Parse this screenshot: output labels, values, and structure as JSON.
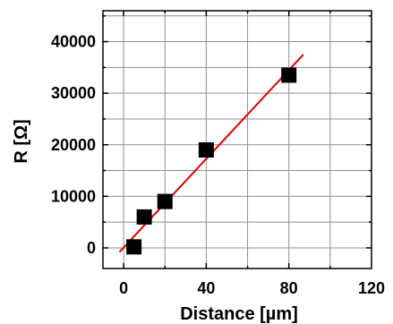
{
  "chart_data": {
    "type": "scatter",
    "xlabel": "Distance [µm]",
    "ylabel": "R [Ω]",
    "xlim": [
      -10,
      120
    ],
    "ylim": [
      -4000,
      46000
    ],
    "xticks": [
      0,
      40,
      80,
      120
    ],
    "yticks": [
      0,
      10000,
      20000,
      30000,
      40000
    ],
    "xtick_labels": [
      "0",
      "40",
      "80",
      "120"
    ],
    "ytick_labels": [
      "0",
      "10000",
      "20000",
      "30000",
      "40000"
    ],
    "x_minor_step": 20,
    "y_minor_step": 5000,
    "grid": true,
    "series": [
      {
        "x": [
          5,
          10,
          20,
          40,
          80
        ],
        "y": [
          200,
          6000,
          9000,
          19000,
          33500
        ],
        "marker": "square",
        "color": "#000000"
      }
    ],
    "fit_line": {
      "x": [
        -2,
        87
      ],
      "y": [
        -800,
        37500
      ],
      "color": "#e00000"
    }
  }
}
